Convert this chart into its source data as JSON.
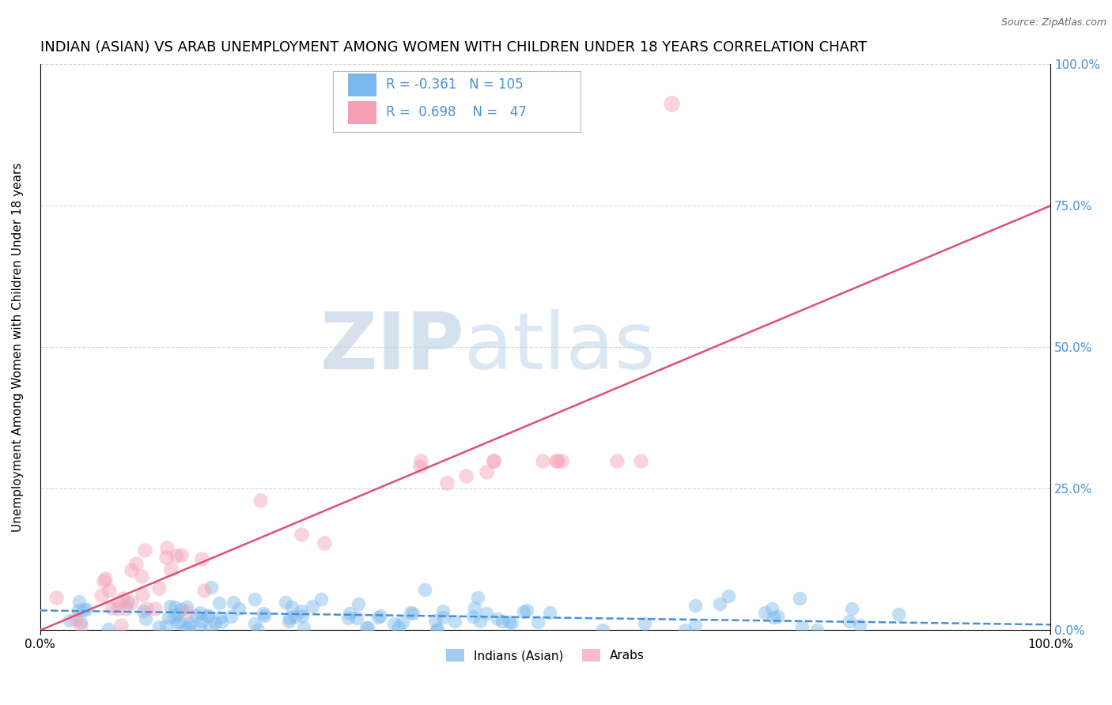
{
  "title": "INDIAN (ASIAN) VS ARAB UNEMPLOYMENT AMONG WOMEN WITH CHILDREN UNDER 18 YEARS CORRELATION CHART",
  "source": "Source: ZipAtlas.com",
  "ylabel": "Unemployment Among Women with Children Under 18 years",
  "xlabel": "",
  "watermark_part1": "ZIP",
  "watermark_part2": "atlas",
  "legend_indian_R": "-0.361",
  "legend_indian_N": "105",
  "legend_arab_R": "0.698",
  "legend_arab_N": "47",
  "color_indian": "#7ab8ed",
  "color_arab": "#f4a0b5",
  "color_trendline_indian": "#4a90d9",
  "color_trendline_arab": "#e05070",
  "xlim": [
    0,
    1
  ],
  "ylim": [
    0,
    1
  ],
  "yticks": [
    0,
    0.25,
    0.5,
    0.75,
    1.0
  ],
  "ytick_labels": [
    "",
    "",
    "",
    "",
    ""
  ],
  "ytick_labels_right": [
    "0.0%",
    "25.0%",
    "50.0%",
    "75.0%",
    "100.0%"
  ],
  "xtick_labels": [
    "0.0%",
    "100.0%"
  ],
  "background_color": "#ffffff",
  "grid_color": "#cccccc",
  "title_fontsize": 13,
  "axis_label_fontsize": 11,
  "tick_fontsize": 11,
  "arab_trend_x0": -0.02,
  "arab_trend_y0": -0.015,
  "arab_trend_x1": 1.0,
  "arab_trend_y1": 0.75,
  "indian_trend_x0": 0.0,
  "indian_trend_y0": 0.035,
  "indian_trend_x1": 1.0,
  "indian_trend_y1": 0.01
}
